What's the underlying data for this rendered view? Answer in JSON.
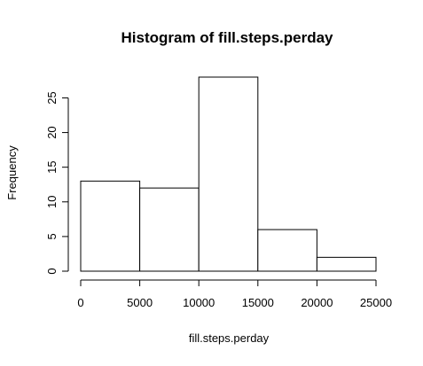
{
  "chart_data": {
    "type": "bar",
    "title": "Histogram of fill.steps.perday",
    "xlabel": "fill.steps.perday",
    "ylabel": "Frequency",
    "bins": [
      {
        "from": 0,
        "to": 5000,
        "count": 13
      },
      {
        "from": 5000,
        "to": 10000,
        "count": 12
      },
      {
        "from": 10000,
        "to": 15000,
        "count": 28
      },
      {
        "from": 15000,
        "to": 20000,
        "count": 6
      },
      {
        "from": 20000,
        "to": 25000,
        "count": 2
      }
    ],
    "xlim": [
      0,
      25000
    ],
    "ylim": [
      0,
      28
    ],
    "xticks": [
      0,
      5000,
      10000,
      15000,
      20000,
      25000
    ],
    "xtick_labels": [
      "0",
      "5000",
      "10000",
      "15000",
      "20000",
      "25000"
    ],
    "yticks": [
      0,
      5,
      10,
      15,
      20,
      25
    ],
    "ytick_labels": [
      "0",
      "5",
      "10",
      "15",
      "20",
      "25"
    ],
    "grid": false,
    "legend": "none",
    "bar_fill": "#ffffff",
    "bar_stroke": "#000000"
  }
}
